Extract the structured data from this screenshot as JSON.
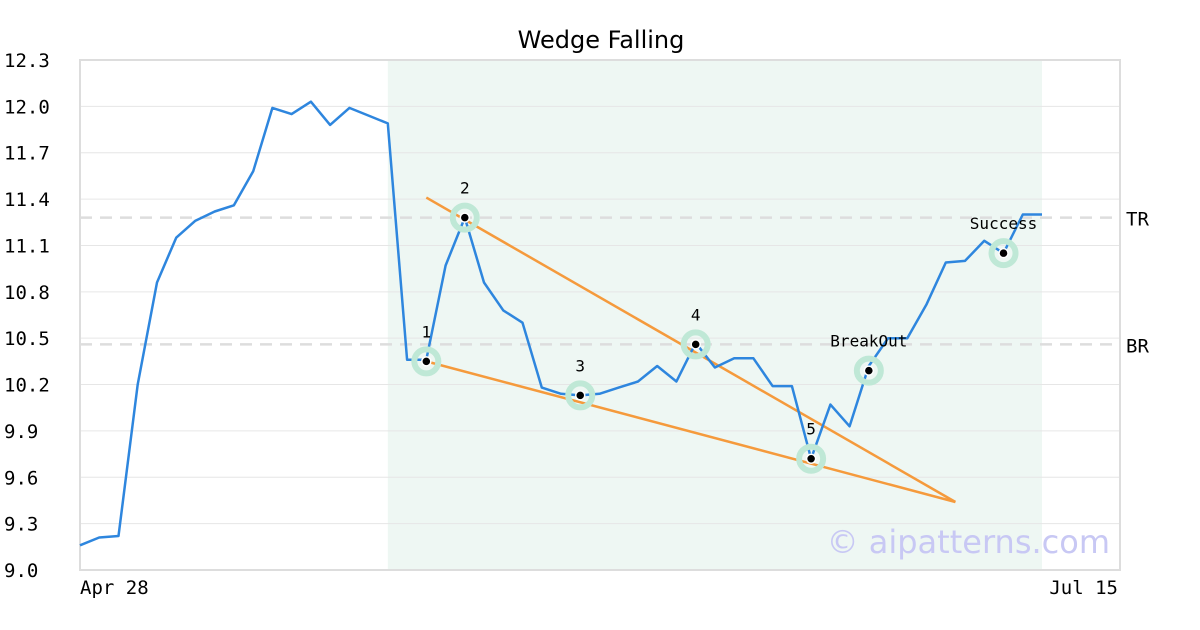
{
  "chart_data": {
    "type": "line",
    "title": "Wedge Falling",
    "xlabel": "",
    "ylabel": "",
    "x_tick_labels": [
      {
        "index": 0,
        "label": "Apr 28"
      },
      {
        "index": 50,
        "label": "Jul 15"
      }
    ],
    "ylim": [
      9.0,
      12.3
    ],
    "yticks": [
      "9.0",
      "9.3",
      "9.6",
      "9.9",
      "10.2",
      "10.5",
      "10.8",
      "11.1",
      "11.4",
      "11.7",
      "12.0",
      "12.3"
    ],
    "grid": true,
    "series": [
      {
        "color": "#2e86de",
        "values": [
          9.16,
          9.21,
          9.22,
          10.2,
          10.86,
          11.15,
          11.26,
          11.32,
          11.36,
          11.58,
          11.99,
          11.95,
          12.03,
          11.88,
          11.99,
          11.94,
          11.89,
          10.36,
          10.36,
          10.97,
          11.28,
          10.86,
          10.68,
          10.6,
          10.18,
          10.14,
          10.13,
          10.14,
          10.18,
          10.22,
          10.32,
          10.22,
          10.47,
          10.31,
          10.37,
          10.37,
          10.19,
          10.19,
          9.72,
          10.07,
          9.93,
          10.32,
          10.5,
          10.5,
          10.72,
          10.99,
          11.0,
          11.13,
          11.05,
          11.3,
          11.3
        ]
      }
    ],
    "highlight_region": {
      "x_start": 16,
      "x_end": 50,
      "color": "#eef7f3"
    },
    "reference_lines": [
      {
        "label": "TR",
        "value": 11.28
      },
      {
        "label": "BR",
        "value": 10.46
      }
    ],
    "trend_lines": [
      {
        "color": "#f59a3c",
        "points": [
          [
            18,
            11.41
          ],
          [
            45.5,
            9.44
          ]
        ]
      },
      {
        "color": "#f59a3c",
        "points": [
          [
            18,
            10.35
          ],
          [
            45.5,
            9.44
          ]
        ]
      }
    ],
    "points": [
      {
        "label": "1",
        "x": 18,
        "y": 10.35
      },
      {
        "label": "2",
        "x": 20,
        "y": 11.28
      },
      {
        "label": "3",
        "x": 26,
        "y": 10.13
      },
      {
        "label": "4",
        "x": 32,
        "y": 10.46
      },
      {
        "label": "5",
        "x": 38,
        "y": 9.72
      },
      {
        "label": "BreakOut",
        "x": 41,
        "y": 10.29
      },
      {
        "label": "Success",
        "x": 48,
        "y": 11.05
      }
    ],
    "watermark": "© aipatterns.com",
    "colors": {
      "line": "#2e86de",
      "trend": "#f59a3c",
      "point_halo": "#bfe8d6",
      "grid": "#e6e6e6",
      "reference": "#dddddd",
      "frame": "#dddddd"
    }
  }
}
